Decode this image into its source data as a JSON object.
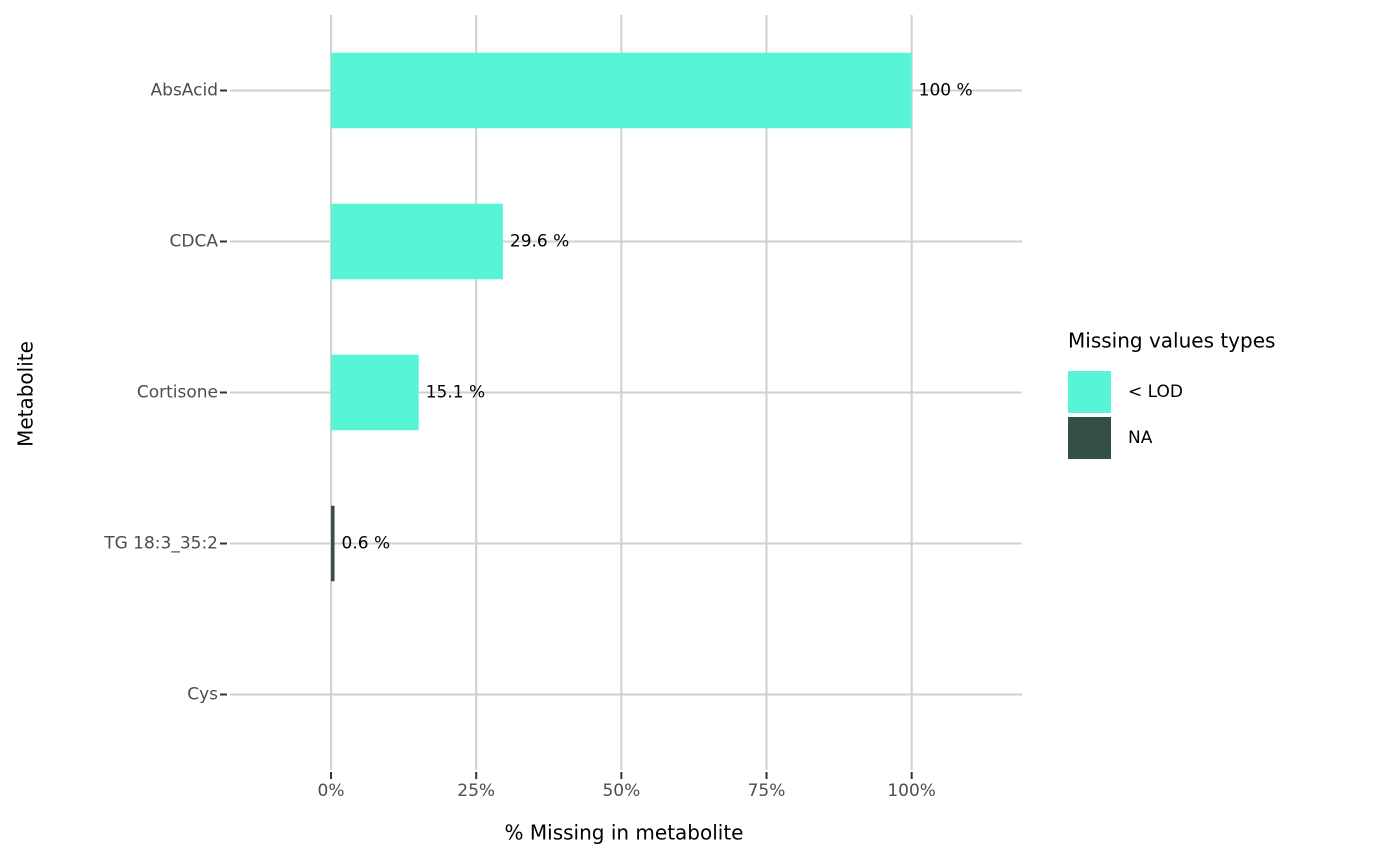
{
  "chart_data": {
    "type": "stacked-barh",
    "xlabel": "% Missing in metabolite",
    "ylabel": "Metabolite",
    "categories": [
      "AbsAcid",
      "CDCA",
      "Cortisone",
      "TG 18:3_35:2",
      "Cys"
    ],
    "series": [
      {
        "name": "< LOD",
        "color": "#57f5d5",
        "values": [
          100,
          29.6,
          15.1,
          0,
          0
        ],
        "value_labels": [
          "100 %",
          "29.6 %",
          "15.1 %",
          null,
          null
        ]
      },
      {
        "name": "NA",
        "color": "#334f48",
        "values": [
          0,
          0,
          0,
          0.6,
          0
        ],
        "value_labels": [
          null,
          null,
          null,
          "0.6 %",
          null
        ]
      }
    ],
    "xlim": [
      -17.4,
      119
    ],
    "xticks": [
      {
        "value": 0,
        "label": "0%"
      },
      {
        "value": 25,
        "label": "25%"
      },
      {
        "value": 50,
        "label": "50%"
      },
      {
        "value": 75,
        "label": "75%"
      },
      {
        "value": 100,
        "label": "100%"
      }
    ],
    "legend_title": "Missing values types",
    "legend_position": "right",
    "grid": true
  }
}
